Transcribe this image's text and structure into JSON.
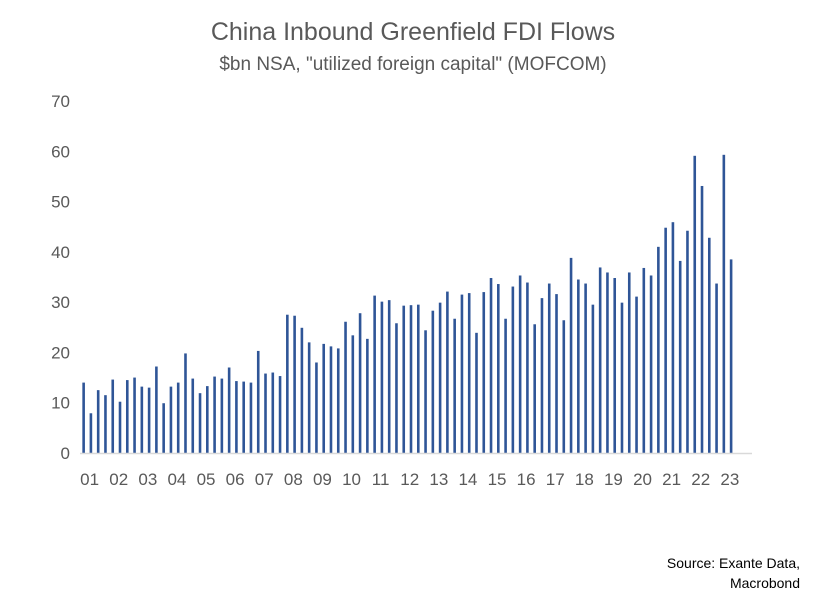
{
  "title": "China Inbound Greenfield FDI Flows",
  "subtitle": "$bn NSA, \"utilized foreign capital\" (MOFCOM)",
  "source_lines": [
    "Source: Exante Data,",
    "Macrobond"
  ],
  "colors": {
    "bar": "#2F5597",
    "axis": "#D9D9D9",
    "text": "#595959"
  },
  "chart_data": {
    "type": "bar",
    "title": "China Inbound Greenfield FDI Flows",
    "subtitle": "$bn NSA, \"utilized foreign capital\" (MOFCOM)",
    "xlabel": "",
    "ylabel": "",
    "ylim": [
      0,
      70
    ],
    "yticks": [
      0,
      10,
      20,
      30,
      40,
      50,
      60,
      70
    ],
    "xtick_labels": [
      "01",
      "02",
      "03",
      "04",
      "05",
      "06",
      "07",
      "08",
      "09",
      "10",
      "11",
      "12",
      "13",
      "14",
      "15",
      "16",
      "17",
      "18",
      "19",
      "20",
      "21",
      "22",
      "23"
    ],
    "grid": false,
    "frequency": "quarterly",
    "start": "2001-Q1",
    "values": [
      14,
      7.9,
      12.5,
      11.5,
      14.6,
      10.2,
      14.5,
      15,
      13.2,
      13,
      17.2,
      9.9,
      13.2,
      14,
      19.8,
      14.8,
      11.9,
      13.3,
      15.2,
      14.8,
      17,
      14.3,
      14.2,
      14,
      20.3,
      15.8,
      16,
      15.3,
      27.5,
      27.3,
      24.9,
      22,
      18,
      21.7,
      21.2,
      20.8,
      26.1,
      23.4,
      27.8,
      22.7,
      31.3,
      30.1,
      30.4,
      25.8,
      29.3,
      29.4,
      29.5,
      24.4,
      28.3,
      29.9,
      32.1,
      26.7,
      31.5,
      31.8,
      23.9,
      32,
      34.8,
      33.6,
      26.7,
      33.1,
      35.3,
      33.9,
      25.6,
      30.8,
      33.7,
      31.6,
      26.4,
      38.8,
      34.5,
      33.7,
      29.5,
      36.9,
      35.9,
      34.8,
      29.9,
      35.9,
      31.1,
      36.8,
      35.3,
      41,
      44.8,
      45.9,
      38.2,
      44.2,
      59.1,
      53.1,
      42.8,
      33.7,
      59.3,
      38.5
    ]
  }
}
